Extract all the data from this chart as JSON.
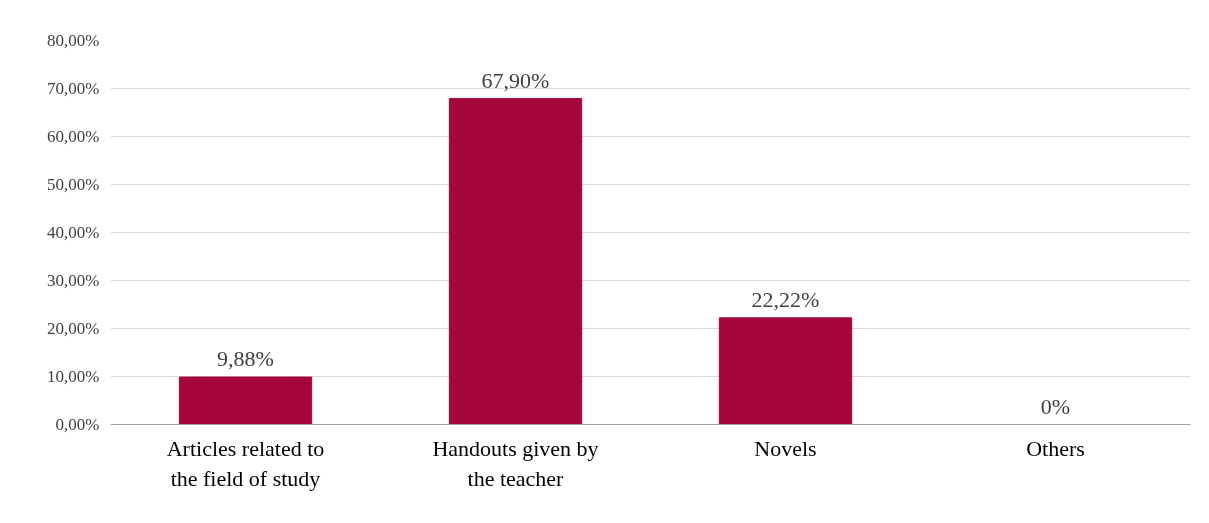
{
  "chart_data": {
    "type": "bar",
    "categories": [
      "Articles related to the field of study",
      "Handouts given by the teacher",
      "Novels",
      "Others"
    ],
    "values": [
      9.88,
      67.9,
      22.22,
      0
    ],
    "value_labels": [
      "9,88%",
      "67,90%",
      "22,22%",
      "0%"
    ],
    "color": "#a5073a",
    "ylim": [
      0,
      80
    ],
    "yticks": [
      {
        "value": 0,
        "label": "0,00%"
      },
      {
        "value": 10,
        "label": "10,00%"
      },
      {
        "value": 20,
        "label": "20,00%"
      },
      {
        "value": 30,
        "label": "30,00%"
      },
      {
        "value": 40,
        "label": "40,00%"
      },
      {
        "value": 50,
        "label": "50,00%"
      },
      {
        "value": 60,
        "label": "60,00%"
      },
      {
        "value": 70,
        "label": "70,00%"
      },
      {
        "value": 80,
        "label": "80,00%"
      }
    ],
    "grid": "y"
  }
}
